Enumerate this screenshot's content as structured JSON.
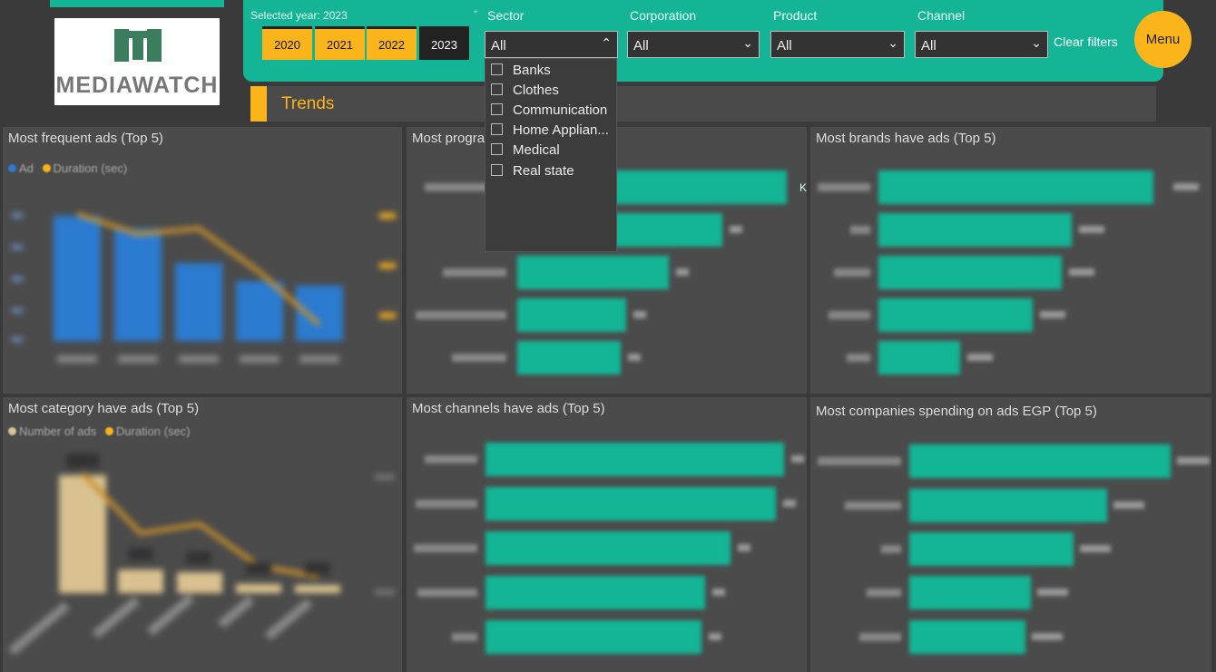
{
  "logo": {
    "text": "MEDIAWATCH"
  },
  "filters": {
    "selected_year_label": "Selected year: 2023",
    "years": [
      "2020",
      "2021",
      "2022",
      "2023"
    ],
    "active_year": "2023",
    "sector": {
      "label": "Sector",
      "value": "All",
      "options": [
        "Banks",
        "Clothes",
        "Communication",
        "Home Applian...",
        "Medical",
        "Real state"
      ]
    },
    "corporation": {
      "label": "Corporation",
      "value": "All"
    },
    "product": {
      "label": "Product",
      "value": "All"
    },
    "channel": {
      "label": "Channel",
      "value": "All"
    },
    "clear_label": "Clear filters"
  },
  "menu_label": "Menu",
  "section_title": "Trends",
  "panels": {
    "frequent_ads": {
      "title": "Most frequent ads (Top 5)",
      "legend": [
        "Ad",
        "Duration (sec)"
      ]
    },
    "programs": {
      "title": "Most progra",
      "partial_label": "K"
    },
    "brands": {
      "title": "Most brands have ads (Top 5)"
    },
    "category": {
      "title": "Most category have ads (Top 5)",
      "legend": [
        "Number of ads",
        "Duration (sec)"
      ]
    },
    "channels": {
      "title": "Most channels have ads (Top 5)"
    },
    "companies": {
      "title": "Most companies spending on ads EGP (Top 5)"
    }
  },
  "colors": {
    "teal": "#13b596",
    "yellow": "#fbb41a",
    "blue": "#2b7bd0",
    "tan": "#d9c28f",
    "bg": "#3a3a3a",
    "panel": "#4b4b4b"
  }
}
